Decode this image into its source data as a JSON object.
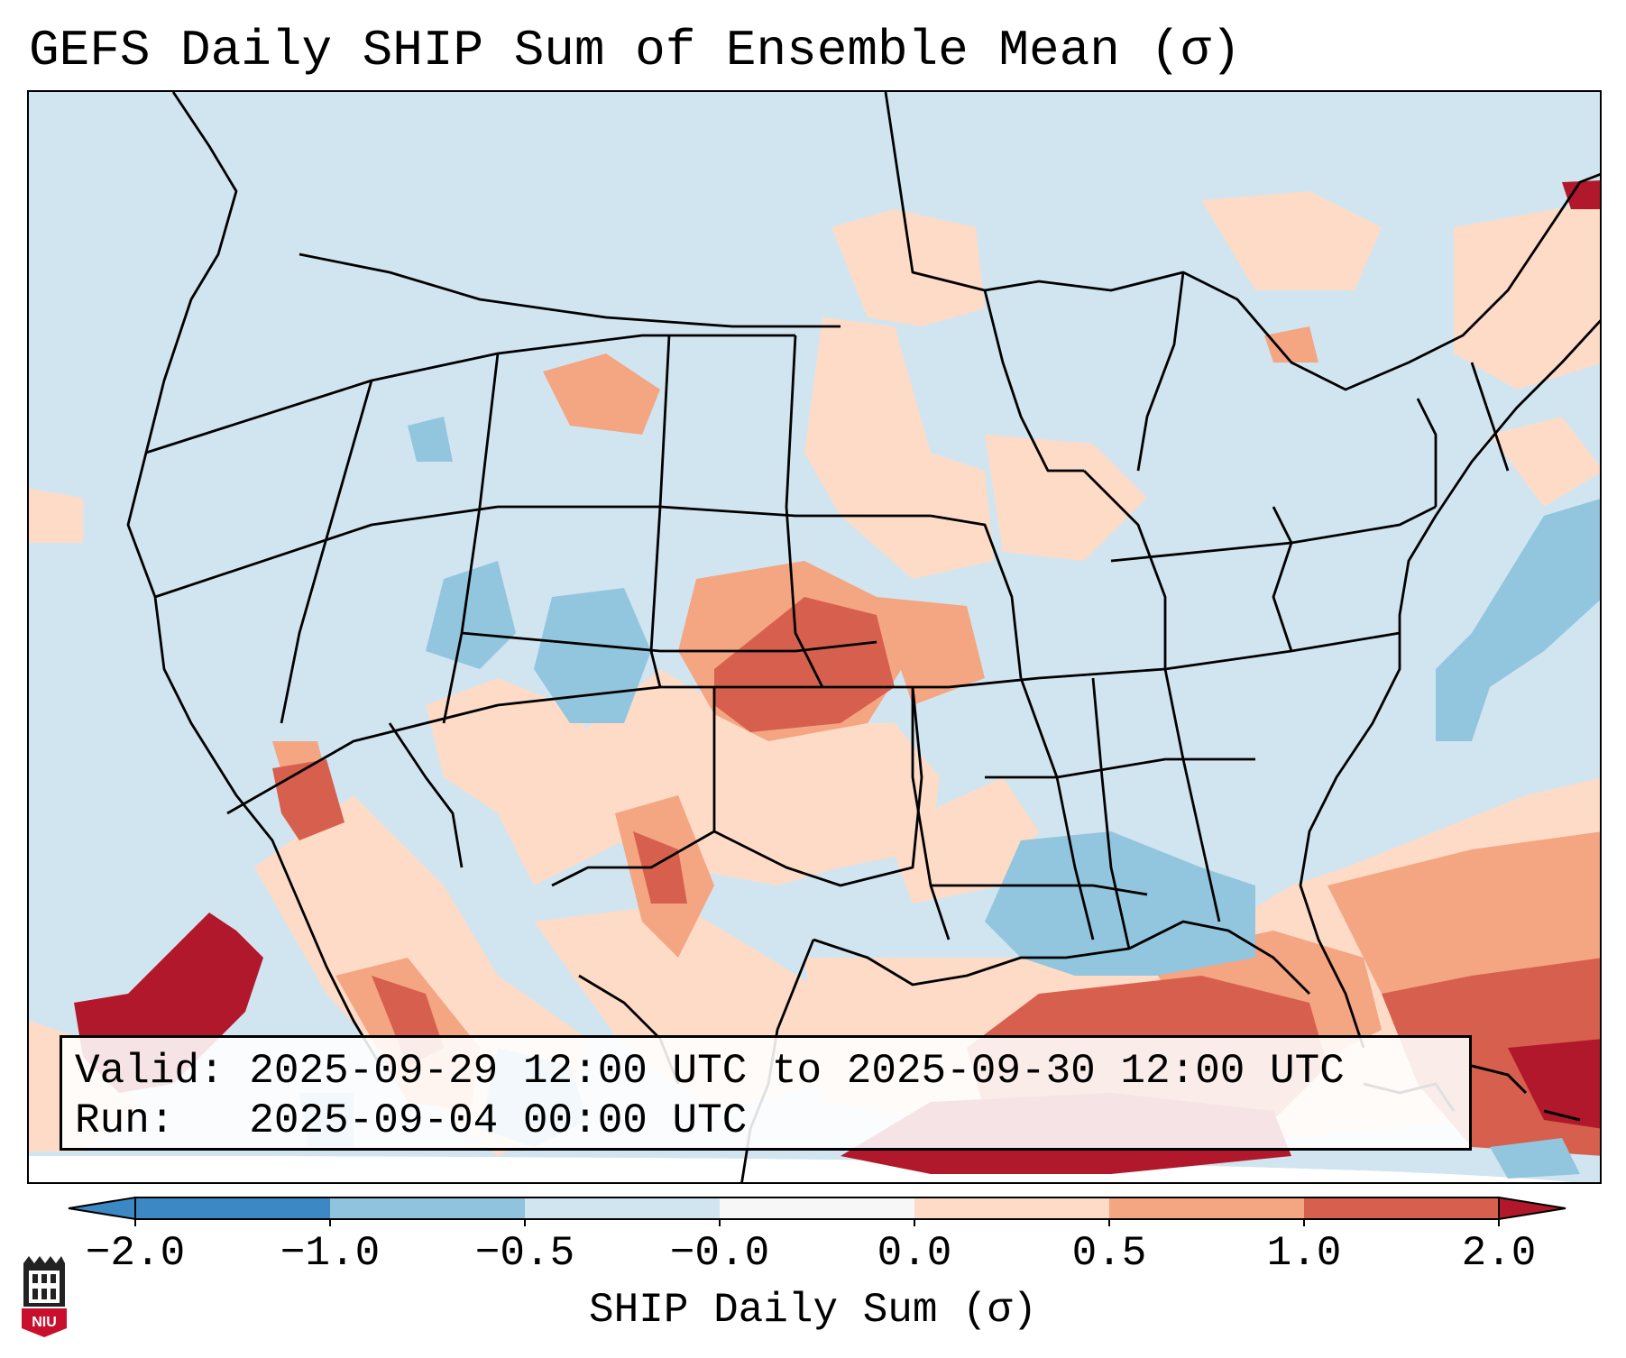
{
  "title": "GEFS Daily SHIP Sum of Ensemble Mean (σ)",
  "info": {
    "valid": "Valid: 2025-09-29 12:00 UTC to 2025-09-30 12:00 UTC",
    "run": "Run:   2025-09-04 00:00 UTC"
  },
  "colorbar": {
    "label": "SHIP Daily Sum (σ)",
    "ticks": [
      "−2.0",
      "−1.0",
      "−0.5",
      "−0.0",
      "0.0",
      "0.5",
      "1.0",
      "2.0"
    ],
    "colors": [
      "#3b88c4",
      "#8fc3de",
      "#d1e5f0",
      "#f7f7f7",
      "#fddbc7",
      "#f4a582",
      "#d6604d",
      "#b2182b"
    ],
    "extend": "both"
  },
  "legend_colors": {
    "ocean_background": "#d1e5f0",
    "strong_negative": "#92c5de",
    "weak_positive": "#fddbc7",
    "moderate_positive": "#f4a582",
    "strong_positive": "#d6604d",
    "extreme_positive": "#b2182b"
  },
  "logo": {
    "text": "NIU",
    "description": "university logo"
  }
}
